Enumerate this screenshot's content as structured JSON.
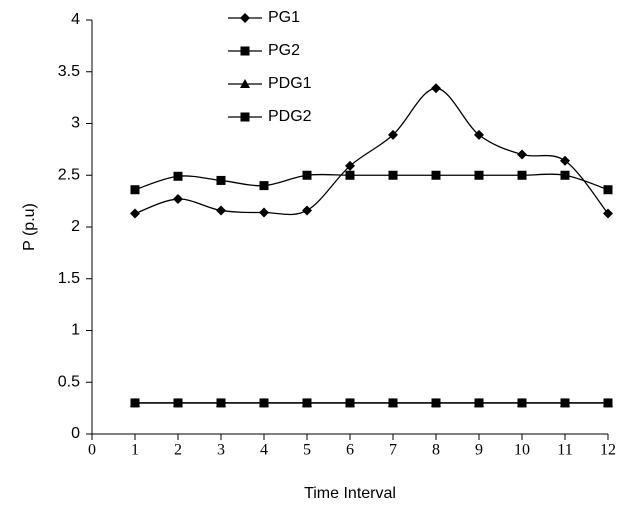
{
  "chart_data": {
    "type": "line",
    "x_label": "Time Interval",
    "y_label": "P (p.u)",
    "x": [
      1,
      2,
      3,
      4,
      5,
      6,
      7,
      8,
      9,
      10,
      11,
      12
    ],
    "series": [
      {
        "name": "PG1",
        "color": "#000000",
        "marker": "diamond",
        "values": [
          2.13,
          2.27,
          2.16,
          2.14,
          2.16,
          2.59,
          2.89,
          3.34,
          2.89,
          2.7,
          2.64,
          2.13
        ]
      },
      {
        "name": "PG2",
        "color": "#000000",
        "marker": "square",
        "values": [
          2.36,
          2.49,
          2.45,
          2.4,
          2.5,
          2.5,
          2.5,
          2.5,
          2.5,
          2.5,
          2.5,
          2.36
        ]
      },
      {
        "name": "PDG1",
        "color": "#000000",
        "marker": "triangle",
        "values": [
          0.3,
          0.3,
          0.3,
          0.3,
          0.3,
          0.3,
          0.3,
          0.3,
          0.3,
          0.3,
          0.3,
          0.3
        ]
      },
      {
        "name": "PDG2",
        "color": "#000000",
        "marker": "square",
        "values": [
          0.3,
          0.3,
          0.3,
          0.3,
          0.3,
          0.3,
          0.3,
          0.3,
          0.3,
          0.3,
          0.3,
          0.3
        ]
      }
    ],
    "xlim": [
      0,
      12
    ],
    "xticks": [
      0,
      1,
      2,
      3,
      4,
      5,
      6,
      7,
      8,
      9,
      10,
      11,
      12
    ],
    "ylim": [
      0,
      4
    ],
    "yticks": [
      0,
      0.5,
      1,
      1.5,
      2,
      2.5,
      3,
      3.5,
      4
    ],
    "smooth": true,
    "legend": "top"
  }
}
